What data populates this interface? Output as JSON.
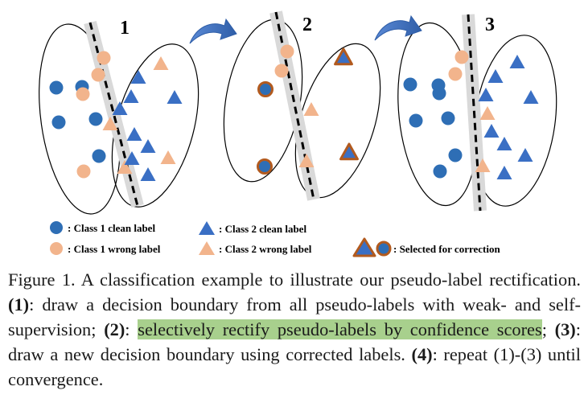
{
  "figure": {
    "panel_numbers": [
      "1",
      "2",
      "3"
    ],
    "legend": {
      "class1_clean": ": Class 1 clean label",
      "class2_clean": ": Class 2 clean label",
      "class1_wrong": ": Class 1 wrong label",
      "class2_wrong": ": Class 2 wrong label",
      "selected": ": Selected for correction"
    },
    "colors": {
      "class1": "#2e6eb5",
      "class2": "#3a6fc4",
      "wrong": "#f2b48c",
      "selected_outline": "#b25a1e",
      "boundary_band": "#d9d9d9",
      "arrow": "#3f72bf"
    }
  },
  "caption": {
    "figure_label": "Figure 1.",
    "intro": " A classification example to illustrate our pseudo-label rectification. ",
    "step1_label": "(1)",
    "step1_text": ": draw a decision boundary from all pseudo-labels with weak- and self-supervision; ",
    "step2_label": "(2)",
    "step2_colon": ": ",
    "step2_highlight": "selectively rectify pseudo-labels by confidence scores",
    "step2_end": "; ",
    "step3_label": "(3)",
    "step3_text": ": draw a new decision boundary using corrected labels. ",
    "step4_label": "(4)",
    "step4_text": ": repeat (1)-(3) until convergence."
  }
}
